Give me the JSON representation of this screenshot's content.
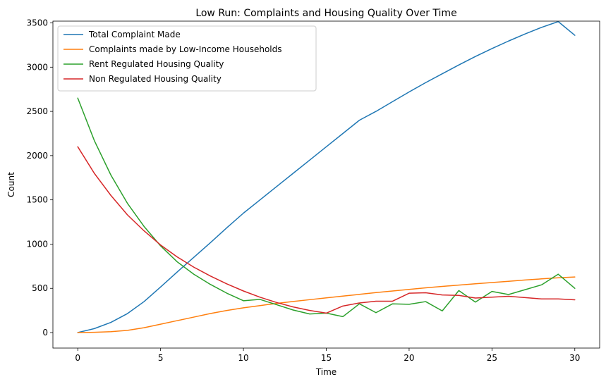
{
  "chart_data": {
    "type": "line",
    "title": "Low Run: Complaints and Housing Quality Over Time",
    "xlabel": "Time",
    "ylabel": "Count",
    "xlim": [
      -1.5,
      31.5
    ],
    "ylim": [
      -175,
      3520
    ],
    "xticks": [
      0,
      5,
      10,
      15,
      20,
      25,
      30
    ],
    "yticks": [
      0,
      500,
      1000,
      1500,
      2000,
      2500,
      3000,
      3500
    ],
    "grid": false,
    "legend_position": "top-left",
    "x": [
      0,
      1,
      2,
      3,
      4,
      5,
      6,
      7,
      8,
      9,
      10,
      11,
      12,
      13,
      14,
      15,
      16,
      17,
      18,
      19,
      20,
      21,
      22,
      23,
      24,
      25,
      26,
      27,
      28,
      29,
      30
    ],
    "series": [
      {
        "name": "Total Complaint Made",
        "color": "#1f77b4",
        "values": [
          0,
          45,
          115,
          215,
          350,
          515,
          685,
          850,
          1015,
          1185,
          1350,
          1500,
          1650,
          1800,
          1950,
          2100,
          2250,
          2400,
          2500,
          2610,
          2720,
          2825,
          2925,
          3025,
          3120,
          3210,
          3295,
          3375,
          3450,
          3515,
          3360
        ]
      },
      {
        "name": "Complaints made by Low-Income Households",
        "color": "#ff7f0e",
        "values": [
          0,
          3,
          10,
          25,
          55,
          95,
          135,
          175,
          215,
          250,
          280,
          305,
          330,
          352,
          372,
          392,
          412,
          432,
          452,
          470,
          488,
          506,
          522,
          537,
          552,
          566,
          580,
          594,
          607,
          619,
          628
        ]
      },
      {
        "name": "Rent Regulated Housing Quality",
        "color": "#2ca02c",
        "values": [
          2650,
          2170,
          1780,
          1460,
          1200,
          980,
          800,
          660,
          545,
          445,
          360,
          375,
          315,
          255,
          210,
          220,
          180,
          325,
          225,
          325,
          320,
          350,
          245,
          475,
          345,
          465,
          430,
          485,
          540,
          660,
          500
        ]
      },
      {
        "name": "Non Regulated Housing Quality",
        "color": "#d62728",
        "values": [
          2100,
          1800,
          1550,
          1330,
          1150,
          990,
          855,
          740,
          640,
          550,
          470,
          400,
          340,
          290,
          250,
          220,
          300,
          335,
          355,
          355,
          445,
          450,
          425,
          420,
          390,
          400,
          410,
          395,
          380,
          380,
          370
        ]
      }
    ]
  }
}
